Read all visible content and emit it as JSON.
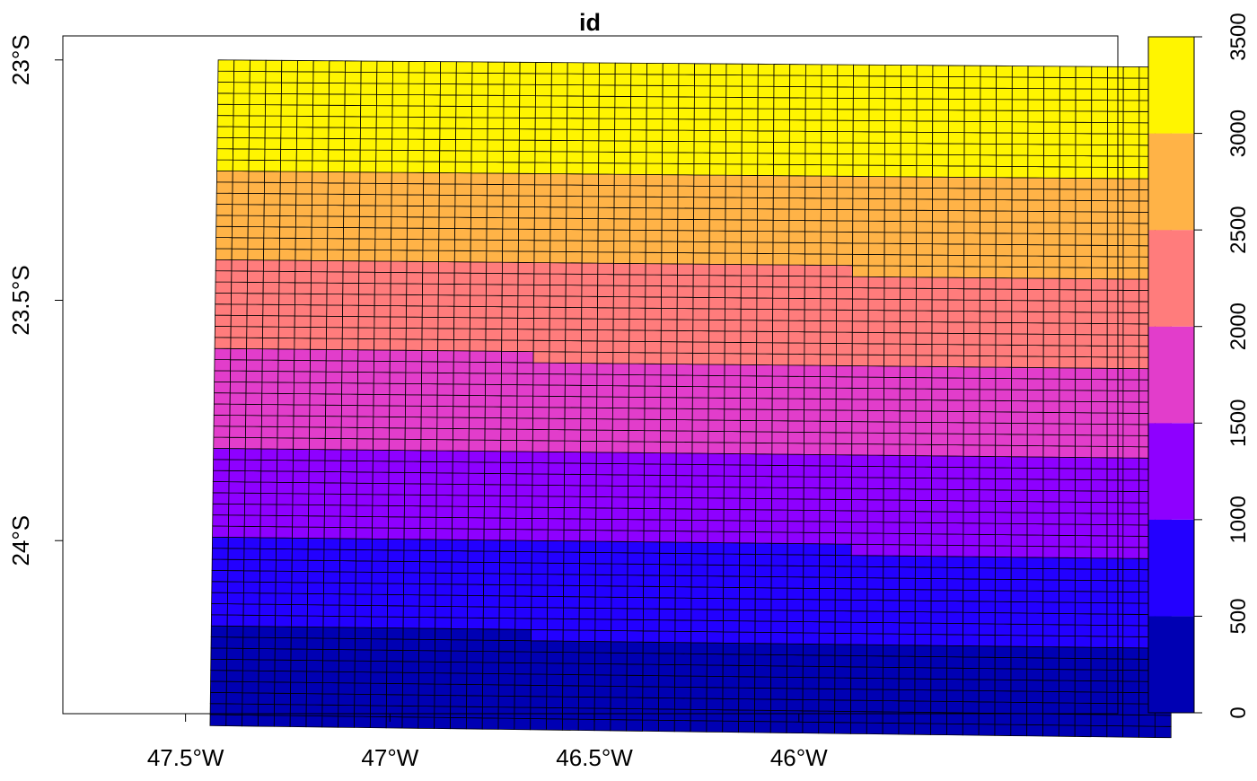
{
  "chart_data": {
    "type": "heatmap",
    "title": "id",
    "x_ticks": [
      {
        "value": -47.5,
        "label": "47.5°W"
      },
      {
        "value": -47.0,
        "label": "47°W"
      },
      {
        "value": -46.5,
        "label": "46.5°W"
      },
      {
        "value": -46.0,
        "label": "46°W"
      }
    ],
    "y_ticks": [
      {
        "value": -23.0,
        "label": "23°S"
      },
      {
        "value": -23.5,
        "label": "23.5°S"
      },
      {
        "value": -24.0,
        "label": "24°S"
      }
    ],
    "xlim": [
      -47.8,
      -45.22
    ],
    "ylim": [
      -24.36,
      -22.95
    ],
    "grid": {
      "columns": 60,
      "rows": 60,
      "lon_range_top": [
        -47.42,
        -45.09
      ],
      "lon_range_bottom": [
        -47.44,
        -45.09
      ],
      "lat_north_left": -23.0,
      "lat_north_right": -23.015,
      "lat_south_left": -24.385,
      "lat_south_right": -24.41,
      "id_range": [
        1,
        3600
      ],
      "id_order": "row-major from south-west, increasing eastward then northward"
    },
    "legend": {
      "placement": "right",
      "breaks": [
        0,
        500,
        1000,
        1500,
        2000,
        2500,
        3000,
        3500
      ],
      "tick_labels": [
        "0",
        "500",
        "1000",
        "1500",
        "2000",
        "2500",
        "3000",
        "3500"
      ],
      "colors": [
        "#0000B3",
        "#2300FF",
        "#8E00FF",
        "#E23DCB",
        "#FF7C7C",
        "#FFB347",
        "#FFF500"
      ]
    }
  }
}
